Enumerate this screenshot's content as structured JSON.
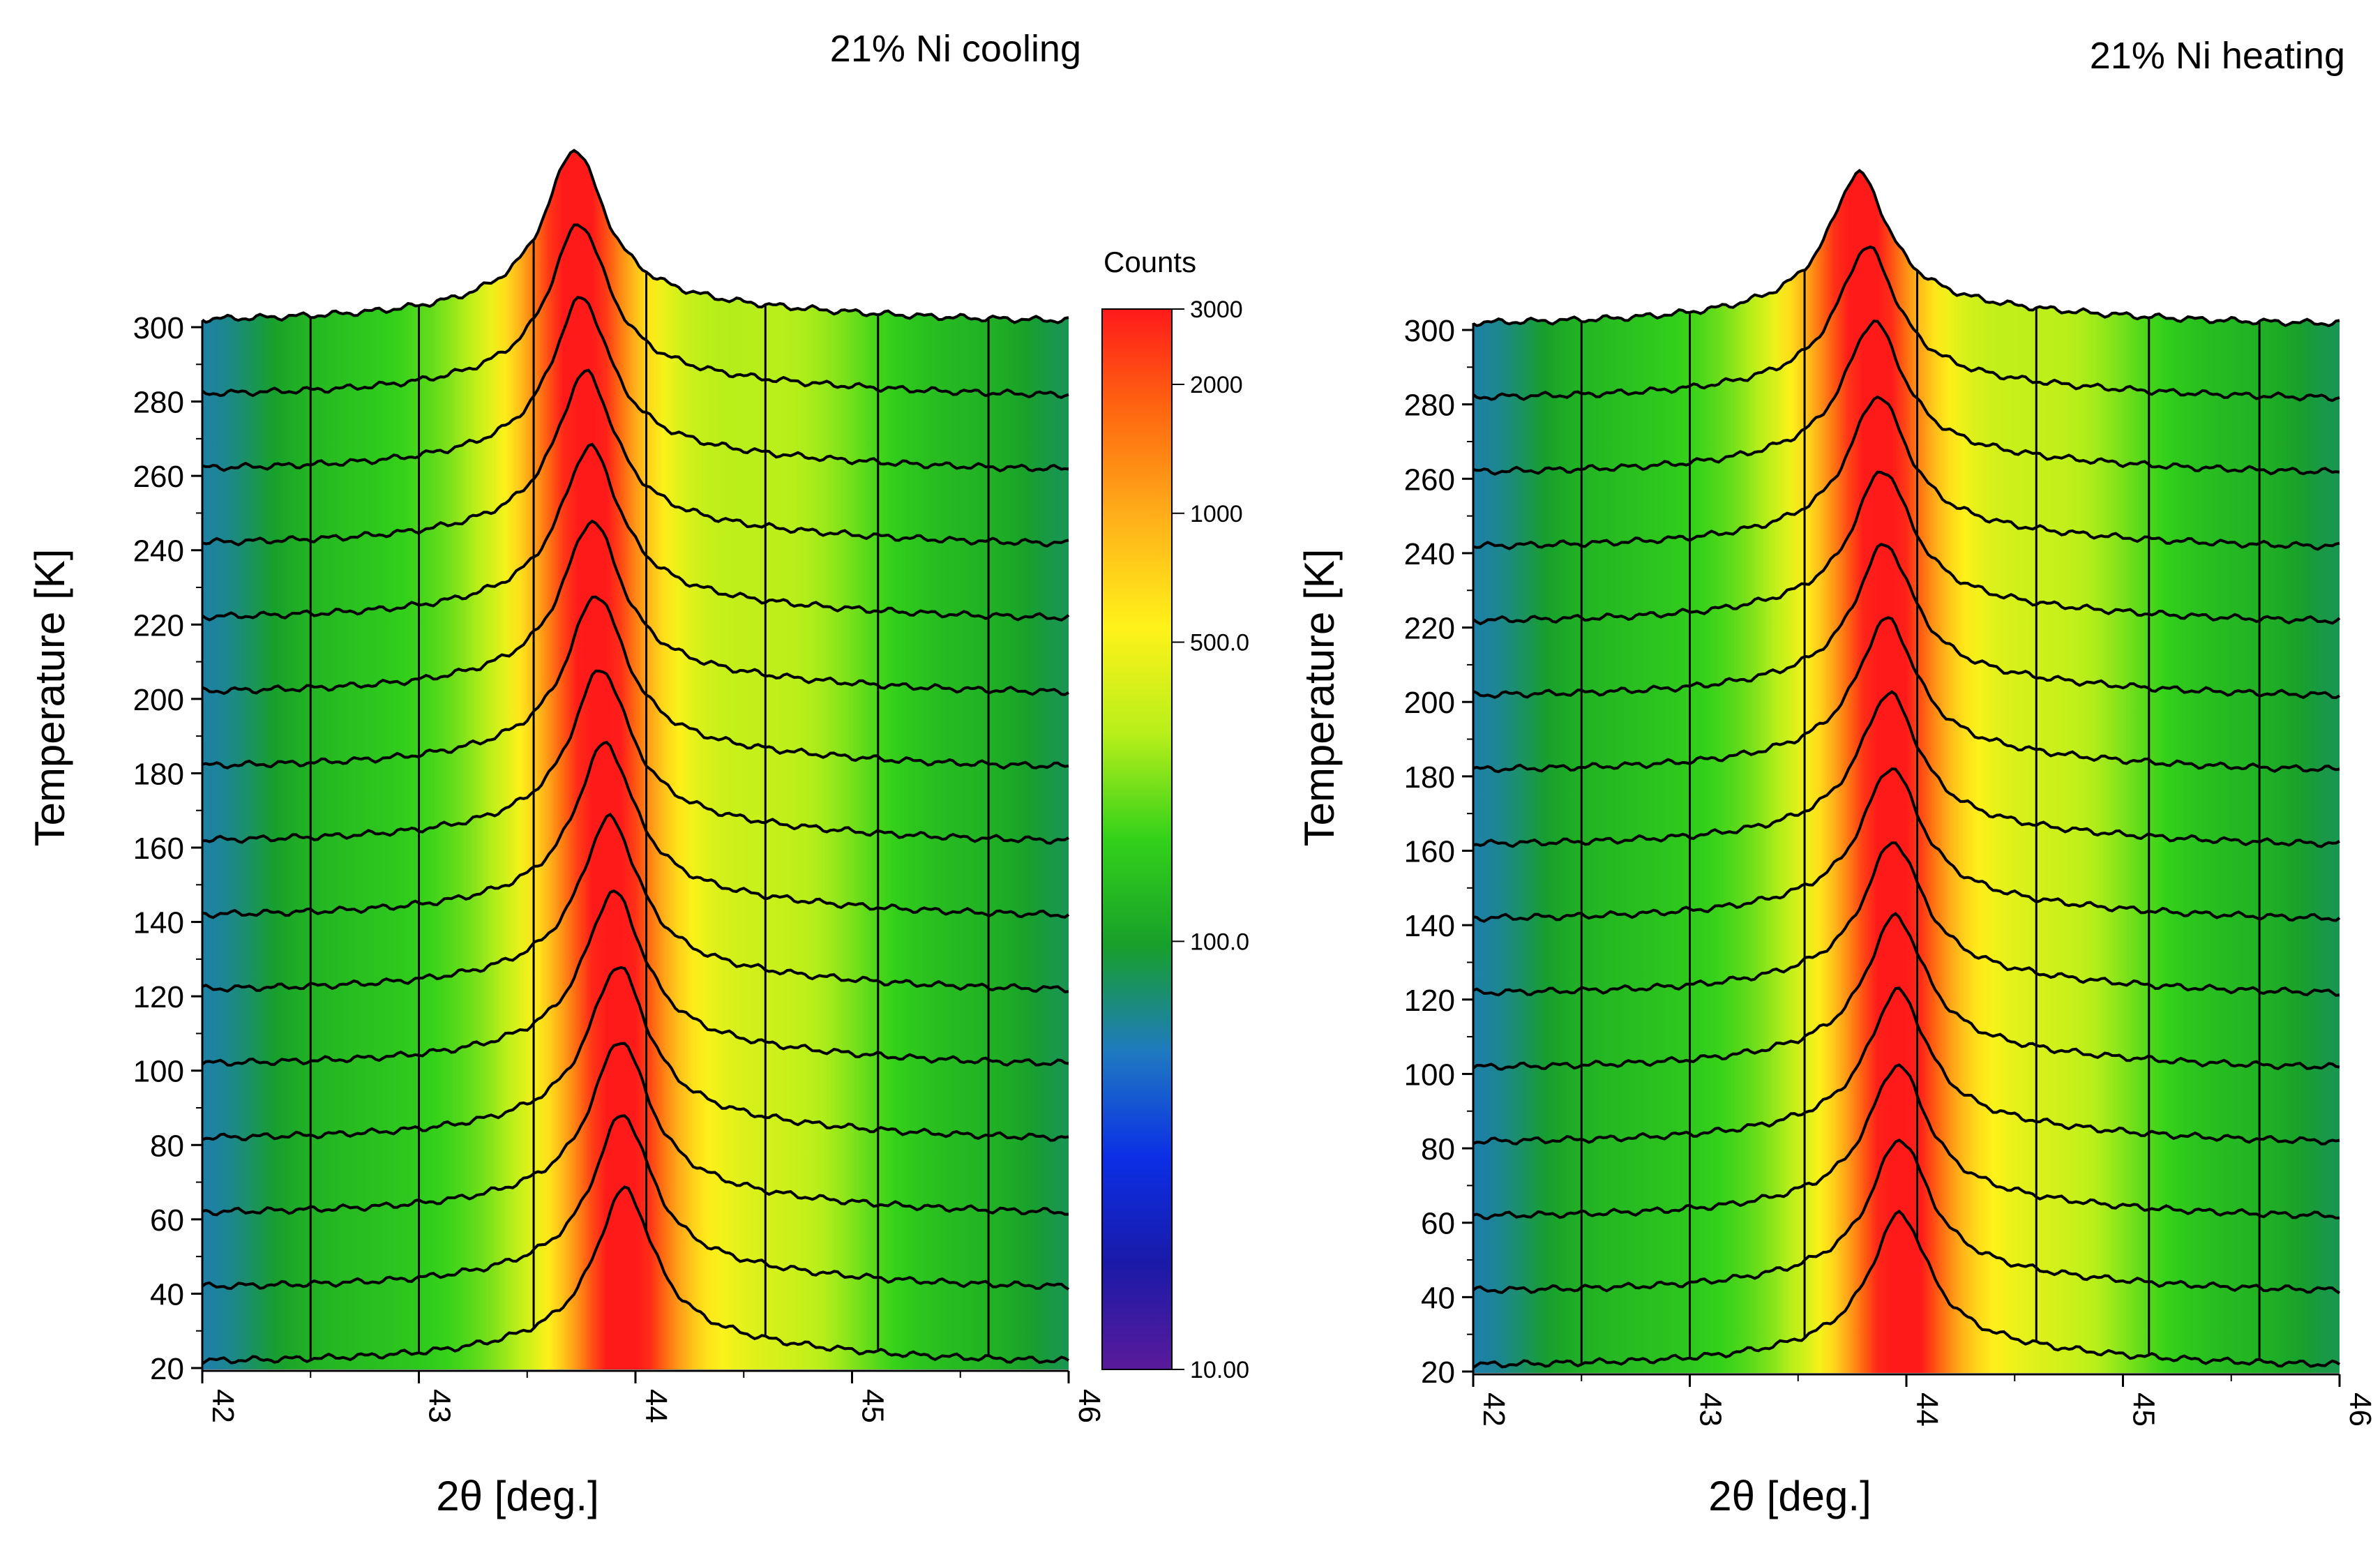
{
  "chart_data": [
    {
      "type": "waterfall",
      "title": "21% Ni cooling",
      "xlabel": "2θ [deg.]",
      "ylabel": "Temperature [K]",
      "xlim": [
        42,
        46
      ],
      "ylim": [
        20,
        300
      ],
      "x_ticks": [
        "42",
        "43",
        "44",
        "45",
        "46"
      ],
      "y_ticks": [
        "20",
        "40",
        "60",
        "80",
        "100",
        "120",
        "140",
        "160",
        "180",
        "200",
        "220",
        "240",
        "260",
        "280",
        "300"
      ],
      "x_slices": [
        42.5,
        43.0,
        43.53,
        44.05,
        44.6,
        45.12,
        45.63
      ],
      "temperatures": [
        20,
        40,
        60,
        80,
        100,
        120,
        140,
        160,
        180,
        200,
        220,
        240,
        260,
        280,
        300
      ],
      "peak_center": [
        43.95,
        43.94,
        43.93,
        43.92,
        43.9,
        43.88,
        43.86,
        43.84,
        43.82,
        43.8,
        43.79,
        43.77,
        43.75,
        43.74,
        43.72
      ],
      "peak_height_scale": [
        1.0,
        1.0,
        1.0,
        1.0,
        1.0,
        1.0,
        1.0,
        1.0,
        1.0,
        1.0,
        1.0,
        1.0,
        1.0,
        1.0,
        1.0
      ]
    },
    {
      "type": "waterfall",
      "title": "21% Ni heating",
      "xlabel": "2θ [deg.]",
      "ylabel": "Temperature [K]",
      "xlim": [
        42,
        46
      ],
      "ylim": [
        20,
        300
      ],
      "x_ticks": [
        "42",
        "43",
        "44",
        "45",
        "46"
      ],
      "y_ticks": [
        "20",
        "40",
        "60",
        "80",
        "100",
        "120",
        "140",
        "160",
        "180",
        "200",
        "220",
        "240",
        "260",
        "280",
        "300"
      ],
      "x_slices": [
        42.5,
        43.0,
        43.53,
        44.05,
        44.6,
        45.12,
        45.63
      ],
      "temperatures": [
        20,
        40,
        60,
        80,
        100,
        120,
        140,
        160,
        180,
        200,
        220,
        240,
        260,
        280,
        300
      ],
      "peak_center": [
        43.97,
        43.97,
        43.96,
        43.96,
        43.95,
        43.94,
        43.93,
        43.92,
        43.91,
        43.9,
        43.89,
        43.87,
        43.85,
        43.82,
        43.78
      ],
      "peak_height_scale": [
        0.92,
        0.92,
        0.92,
        0.92,
        0.92,
        0.92,
        0.92,
        0.92,
        0.92,
        0.92,
        0.92,
        0.92,
        0.92,
        0.92,
        0.92
      ]
    }
  ],
  "colorbar": {
    "title": "Counts",
    "scale": "log",
    "range": [
      10,
      3000
    ],
    "tick_values": [
      3000,
      2000,
      1000,
      500,
      100,
      10
    ],
    "tick_labels": [
      "3000",
      "2000",
      "1000",
      "500.0",
      "100.0",
      "10.00"
    ],
    "colors": [
      "#5a1a9a",
      "#1a1aa8",
      "#0b2fe6",
      "#1f7ac0",
      "#17a02a",
      "#33d11a",
      "#b8ef1a",
      "#fff21a",
      "#ffb21a",
      "#ff6a10",
      "#ff1a1a"
    ]
  }
}
